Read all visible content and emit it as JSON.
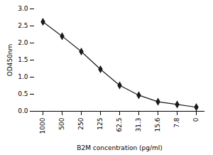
{
  "chart_data": {
    "type": "line",
    "xlabel": "B2M concentration (pg/ml)",
    "ylabel": "OD450nm",
    "categories": [
      "1000",
      "500",
      "250",
      "125",
      "62.5",
      "31.3",
      "15.6",
      "7.8",
      "0"
    ],
    "values": [
      2.62,
      2.2,
      1.75,
      1.23,
      0.76,
      0.47,
      0.28,
      0.2,
      0.12
    ],
    "color": "#1a1a1a",
    "marker": "diamond",
    "ylim": [
      0.0,
      3.0
    ],
    "yticks": [
      {
        "value": 0,
        "label": "0.0"
      },
      0.5,
      {
        "value": 1,
        "label": "1.0"
      },
      1.5,
      {
        "value": 2,
        "label": "2.0"
      },
      2.5,
      {
        "value": 3,
        "label": "3.0"
      }
    ]
  }
}
